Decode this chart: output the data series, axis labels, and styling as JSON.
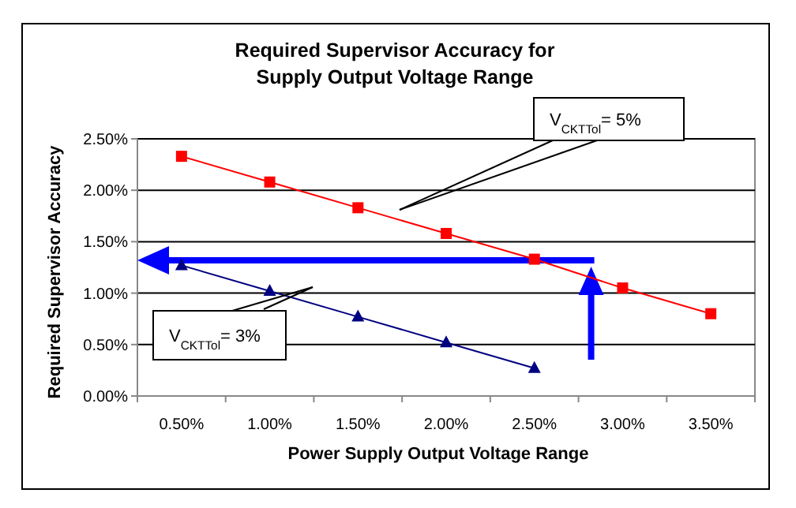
{
  "chart_data": {
    "type": "line",
    "title": "Required Supervisor Accuracy for\nSupply Output Voltage Range",
    "xlabel": "Power Supply Output Voltage Range",
    "ylabel": "Required Supervisor Accuracy",
    "categories": [
      "0.50%",
      "1.00%",
      "1.50%",
      "2.00%",
      "2.50%",
      "3.00%",
      "3.50%"
    ],
    "series": [
      {
        "color": "#ff0000",
        "marker": "square",
        "values": [
          2.33,
          2.08,
          1.83,
          1.58,
          1.33,
          1.05,
          0.8
        ]
      },
      {
        "color": "#000080",
        "marker": "triangle",
        "values": [
          1.27,
          1.02,
          0.77,
          0.52,
          0.27,
          null,
          null
        ]
      }
    ],
    "ylim": [
      0,
      2.5
    ],
    "yticks": [
      {
        "value": 0,
        "label": "0.00%"
      },
      {
        "value": 0.5,
        "label": "0.50%"
      },
      {
        "value": 1,
        "label": "1.00%"
      },
      {
        "value": 1.5,
        "label": "1.50%"
      },
      {
        "value": 2,
        "label": "2.00%"
      },
      {
        "value": 2.5,
        "label": "2.50%"
      }
    ],
    "grid": "y",
    "annotations": [
      "V$_{CKTTol}$= 5%",
      "V$_{CKTTol}$= 3%"
    ]
  }
}
